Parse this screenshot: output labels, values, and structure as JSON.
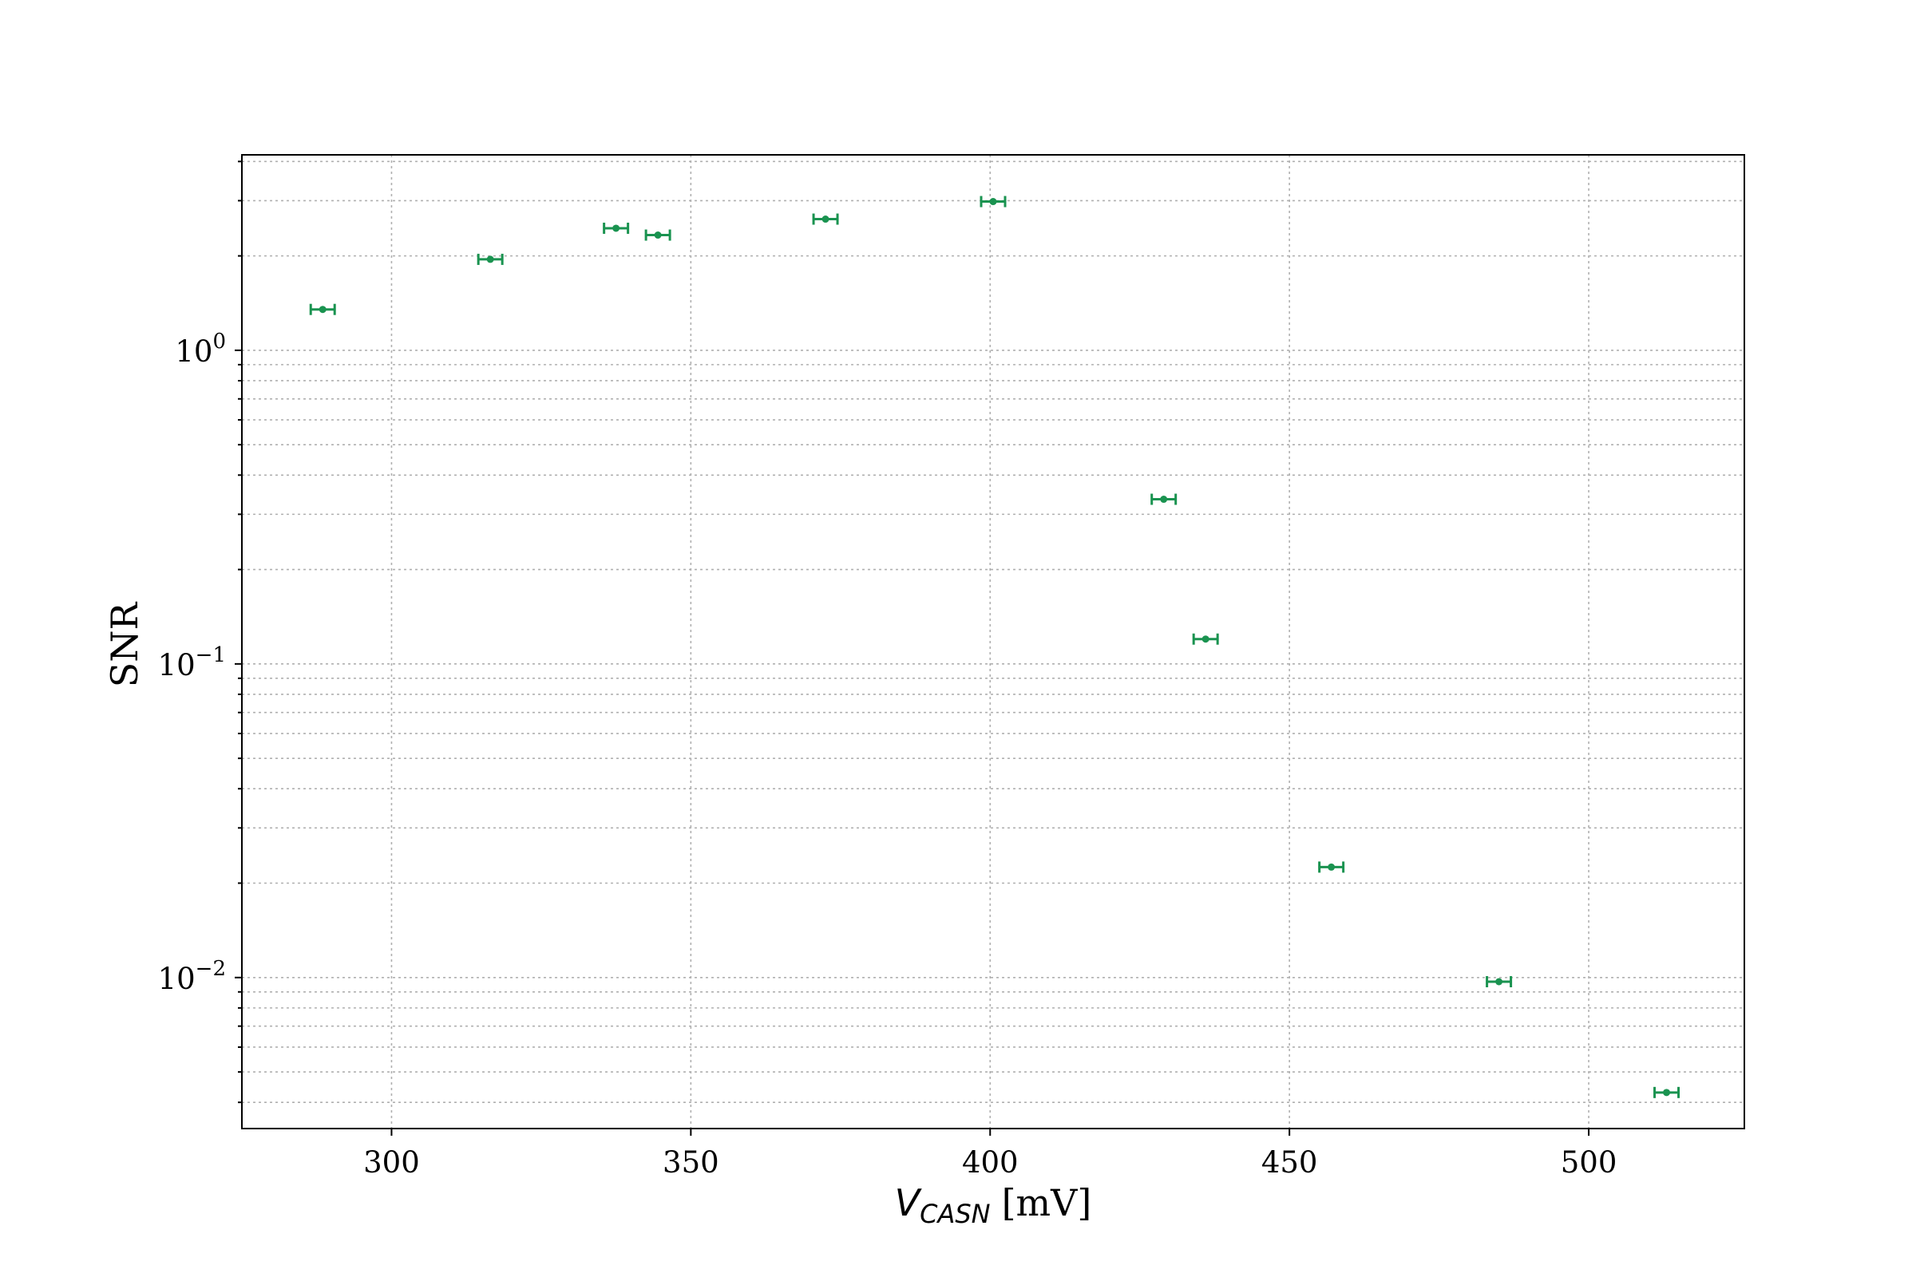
{
  "chart_data": {
    "type": "scatter",
    "title": "",
    "xlabel": {
      "main": "V",
      "subscript": "CASN",
      "unit": "[mV]"
    },
    "ylabel": "SNR",
    "xlim": [
      275,
      526
    ],
    "ylim": [
      0.0033,
      4.2
    ],
    "yscale": "log",
    "grid": true,
    "xticks": [
      {
        "value": 300,
        "label": "300"
      },
      {
        "value": 350,
        "label": "350"
      },
      {
        "value": 400,
        "label": "400"
      },
      {
        "value": 450,
        "label": "450"
      },
      {
        "value": 500,
        "label": "500"
      }
    ],
    "yticks": [
      {
        "value": 1,
        "base": "10",
        "exp": "0"
      },
      {
        "value": 0.1,
        "base": "10",
        "exp": "−1"
      },
      {
        "value": 0.01,
        "base": "10",
        "exp": "−2"
      }
    ],
    "series": [
      {
        "color": "#1a9350",
        "x": [
          288.5,
          316.5,
          337.5,
          344.5,
          372.5,
          400.5,
          429.0,
          436.0,
          457.0,
          485.0,
          513.0
        ],
        "y": [
          1.35,
          1.95,
          2.45,
          2.33,
          2.62,
          2.98,
          0.335,
          0.12,
          0.0225,
          0.0097,
          0.0043
        ],
        "xerr": [
          2,
          2,
          2,
          2,
          2,
          2,
          2,
          2,
          2,
          2,
          2
        ]
      }
    ]
  }
}
